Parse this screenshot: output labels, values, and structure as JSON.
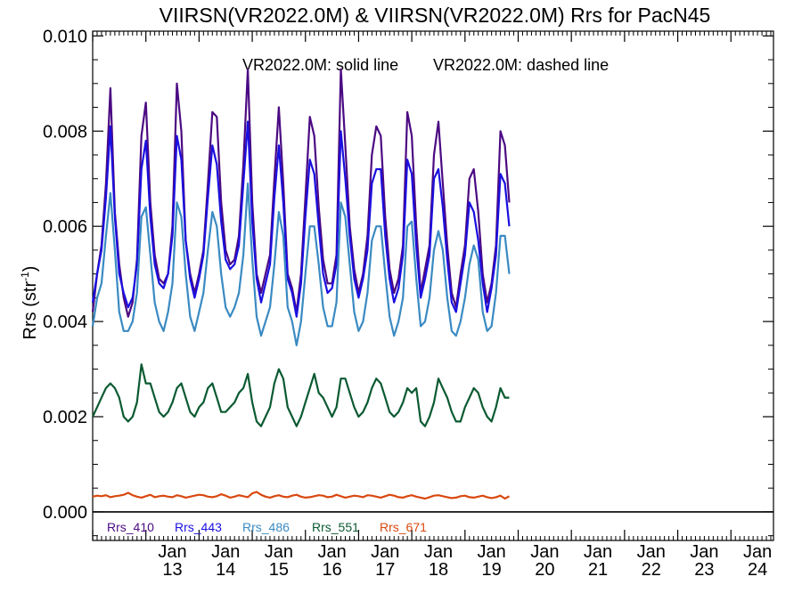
{
  "chart_data": {
    "type": "line",
    "title": "VIIRSN(VR2022.0M) & VIIRSN(VR2022.0M)  Rrs for PacN45",
    "ylabel": "Rrs (str",
    "ylabel_sup": "-1",
    "ylabel_close": ")",
    "annotations": [
      "VR2022.0M: solid line",
      "VR2022.0M: dashed line"
    ],
    "ylim": [
      -0.0006,
      0.0101
    ],
    "xlim": [
      2012.0,
      2024.8
    ],
    "yticks": [
      0.0,
      0.002,
      0.004,
      0.006,
      0.008,
      0.01
    ],
    "ytick_labels": [
      "0.000",
      "0.002",
      "0.004",
      "0.006",
      "0.008",
      "0.010"
    ],
    "xtick_positions": [
      2013,
      2014,
      2015,
      2016,
      2017,
      2018,
      2019,
      2020,
      2021,
      2022,
      2023,
      2024
    ],
    "xtick_labels_month": [
      "Jan",
      "Jan",
      "Jan",
      "Jan",
      "Jan",
      "Jan",
      "Jan",
      "Jan",
      "Jan",
      "Jan",
      "Jan",
      "Jan"
    ],
    "xtick_labels_year": [
      "13",
      "14",
      "15",
      "16",
      "17",
      "18",
      "19",
      "20",
      "21",
      "22",
      "23",
      "24"
    ],
    "zero_line": true,
    "grid": false,
    "legend_position": "bottom-left",
    "x_start": 2012.0,
    "x_step": 0.08333,
    "series": [
      {
        "name": "Rrs_410",
        "color": "#4b0a82",
        "values": [
          0.0042,
          0.005,
          0.0056,
          0.0069,
          0.0089,
          0.0063,
          0.0052,
          0.0045,
          0.0041,
          0.0044,
          0.0053,
          0.0079,
          0.0086,
          0.0065,
          0.0054,
          0.0049,
          0.0048,
          0.005,
          0.006,
          0.009,
          0.008,
          0.0057,
          0.005,
          0.0046,
          0.005,
          0.0055,
          0.0069,
          0.0084,
          0.0083,
          0.0065,
          0.0055,
          0.0052,
          0.0053,
          0.0058,
          0.0073,
          0.0093,
          0.0065,
          0.005,
          0.0046,
          0.005,
          0.0054,
          0.007,
          0.0085,
          0.0069,
          0.005,
          0.0047,
          0.0042,
          0.005,
          0.0066,
          0.0083,
          0.0079,
          0.0064,
          0.0053,
          0.0048,
          0.0048,
          0.0054,
          0.0093,
          0.0077,
          0.006,
          0.0051,
          0.0046,
          0.005,
          0.0058,
          0.0075,
          0.0081,
          0.0079,
          0.0062,
          0.0051,
          0.0046,
          0.0049,
          0.0056,
          0.0084,
          0.0079,
          0.006,
          0.0046,
          0.0051,
          0.0056,
          0.0075,
          0.0082,
          0.0069,
          0.0056,
          0.0046,
          0.0043,
          0.005,
          0.0056,
          0.007,
          0.0072,
          0.0063,
          0.005,
          0.0044,
          0.0048,
          0.0056,
          0.008,
          0.0077,
          0.0065
        ],
        "dashed": false
      },
      {
        "name": "Rrs_443",
        "color": "#1a0fe0",
        "values": [
          0.0044,
          0.005,
          0.0055,
          0.0066,
          0.0081,
          0.0062,
          0.005,
          0.0046,
          0.0043,
          0.0045,
          0.0052,
          0.0072,
          0.0078,
          0.0062,
          0.0052,
          0.0048,
          0.0047,
          0.005,
          0.0058,
          0.0079,
          0.0074,
          0.0057,
          0.0049,
          0.0045,
          0.0049,
          0.0054,
          0.0066,
          0.0077,
          0.0073,
          0.0061,
          0.0053,
          0.0051,
          0.0052,
          0.0056,
          0.0069,
          0.0082,
          0.0061,
          0.0049,
          0.0044,
          0.0048,
          0.0052,
          0.0066,
          0.0077,
          0.0065,
          0.0049,
          0.0046,
          0.0041,
          0.0048,
          0.0062,
          0.0074,
          0.0071,
          0.006,
          0.005,
          0.0046,
          0.0047,
          0.0052,
          0.008,
          0.007,
          0.0058,
          0.0049,
          0.0045,
          0.0049,
          0.0055,
          0.0069,
          0.0072,
          0.0072,
          0.0058,
          0.0049,
          0.0044,
          0.0047,
          0.0054,
          0.0074,
          0.0071,
          0.0056,
          0.0045,
          0.0049,
          0.0054,
          0.007,
          0.0072,
          0.0064,
          0.0053,
          0.0044,
          0.0042,
          0.0048,
          0.0054,
          0.0065,
          0.0063,
          0.0057,
          0.0048,
          0.0042,
          0.0047,
          0.0054,
          0.0071,
          0.0069,
          0.006
        ],
        "dashed": false
      },
      {
        "name": "Rrs_486",
        "color": "#3a8ac2",
        "values": [
          0.0039,
          0.0045,
          0.0048,
          0.0058,
          0.0067,
          0.0055,
          0.0042,
          0.0038,
          0.0038,
          0.004,
          0.0046,
          0.0062,
          0.0064,
          0.0054,
          0.0044,
          0.004,
          0.0038,
          0.0042,
          0.0048,
          0.0065,
          0.0062,
          0.005,
          0.0041,
          0.0038,
          0.0042,
          0.0046,
          0.0055,
          0.0063,
          0.006,
          0.005,
          0.0043,
          0.0041,
          0.0043,
          0.0046,
          0.0054,
          0.0069,
          0.0053,
          0.0041,
          0.0037,
          0.004,
          0.0043,
          0.0052,
          0.0063,
          0.0058,
          0.0043,
          0.004,
          0.0035,
          0.004,
          0.005,
          0.006,
          0.006,
          0.0052,
          0.0043,
          0.0039,
          0.0039,
          0.0044,
          0.0065,
          0.0062,
          0.0052,
          0.0042,
          0.0038,
          0.004,
          0.0046,
          0.0057,
          0.006,
          0.006,
          0.005,
          0.0041,
          0.0037,
          0.004,
          0.0045,
          0.006,
          0.0061,
          0.0049,
          0.0039,
          0.004,
          0.0045,
          0.0055,
          0.0059,
          0.0055,
          0.0045,
          0.0038,
          0.0037,
          0.004,
          0.0045,
          0.0052,
          0.0056,
          0.0053,
          0.0042,
          0.0038,
          0.0039,
          0.0046,
          0.0058,
          0.0058,
          0.005
        ],
        "dashed": false
      },
      {
        "name": "Rrs_551",
        "color": "#0b5a32",
        "values": [
          0.002,
          0.0022,
          0.0024,
          0.0026,
          0.0027,
          0.0026,
          0.0024,
          0.002,
          0.0019,
          0.002,
          0.0023,
          0.0031,
          0.0027,
          0.0027,
          0.0024,
          0.0021,
          0.002,
          0.0021,
          0.0023,
          0.0026,
          0.0027,
          0.0024,
          0.0021,
          0.002,
          0.0022,
          0.0023,
          0.0026,
          0.0027,
          0.0024,
          0.0021,
          0.0021,
          0.0022,
          0.0023,
          0.0025,
          0.0026,
          0.0029,
          0.0023,
          0.0019,
          0.0018,
          0.002,
          0.0022,
          0.0027,
          0.003,
          0.0028,
          0.0022,
          0.002,
          0.0018,
          0.002,
          0.0023,
          0.0026,
          0.0029,
          0.0025,
          0.0024,
          0.0022,
          0.002,
          0.0022,
          0.0028,
          0.0028,
          0.0025,
          0.0022,
          0.002,
          0.0021,
          0.0023,
          0.0026,
          0.0028,
          0.0027,
          0.0024,
          0.0021,
          0.002,
          0.0021,
          0.0023,
          0.0026,
          0.0025,
          0.0026,
          0.0019,
          0.0018,
          0.002,
          0.0023,
          0.0028,
          0.0026,
          0.0024,
          0.0021,
          0.0019,
          0.0019,
          0.0022,
          0.0024,
          0.0026,
          0.0025,
          0.0022,
          0.002,
          0.0019,
          0.0022,
          0.0026,
          0.0024,
          0.0024
        ],
        "dashed": false
      },
      {
        "name": "Rrs_671",
        "color": "#d9480f",
        "values": [
          0.00032,
          0.00034,
          0.00033,
          0.00035,
          0.00031,
          0.00033,
          0.00034,
          0.00036,
          0.0004,
          0.00035,
          0.00032,
          0.0003,
          0.00033,
          0.00036,
          0.00031,
          0.00033,
          0.00034,
          0.00032,
          0.00031,
          0.00035,
          0.00033,
          0.0003,
          0.00032,
          0.00034,
          0.00036,
          0.00035,
          0.00032,
          0.00031,
          0.00033,
          0.00037,
          0.00034,
          0.0003,
          0.00032,
          0.00035,
          0.00033,
          0.00031,
          0.00039,
          0.00042,
          0.00036,
          0.00032,
          0.0003,
          0.00033,
          0.00035,
          0.00032,
          0.00031,
          0.00034,
          0.00036,
          0.00032,
          0.0003,
          0.00031,
          0.00033,
          0.00035,
          0.00034,
          0.00031,
          0.00032,
          0.00036,
          0.00033,
          0.0003,
          0.00032,
          0.00034,
          0.00033,
          0.00031,
          0.00035,
          0.00034,
          0.00032,
          0.0003,
          0.00033,
          0.00036,
          0.00034,
          0.00031,
          0.0003,
          0.00033,
          0.00035,
          0.00032,
          0.0003,
          0.00028,
          0.00031,
          0.00034,
          0.00035,
          0.00033,
          0.00031,
          0.00029,
          0.0003,
          0.00033,
          0.00034,
          0.00031,
          0.0003,
          0.00032,
          0.00034,
          0.00031,
          0.00029,
          0.00031,
          0.00034,
          0.00028,
          0.00033
        ],
        "dashed": false
      }
    ]
  }
}
